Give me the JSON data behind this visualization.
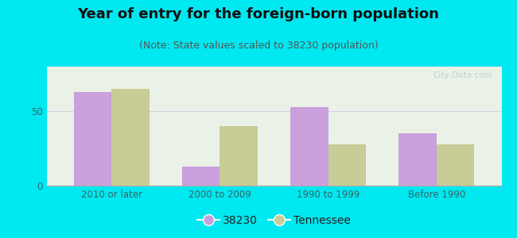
{
  "title": "Year of entry for the foreign-born population",
  "subtitle": "(Note: State values scaled to 38230 population)",
  "categories": [
    "2010 or later",
    "2000 to 2009",
    "1990 to 1999",
    "Before 1990"
  ],
  "values_38230": [
    63,
    13,
    53,
    35
  ],
  "values_tennessee": [
    65,
    40,
    28,
    28
  ],
  "color_38230": "#c9a0dc",
  "color_tennessee": "#c8cc96",
  "background_outer": "#00e8f0",
  "background_inner": "#eaf2e8",
  "ylim": [
    0,
    80
  ],
  "yticks": [
    0,
    50
  ],
  "bar_width": 0.35,
  "legend_label_38230": "38230",
  "legend_label_tennessee": "Tennessee",
  "title_fontsize": 13,
  "subtitle_fontsize": 9,
  "tick_fontsize": 8.5,
  "legend_fontsize": 10
}
